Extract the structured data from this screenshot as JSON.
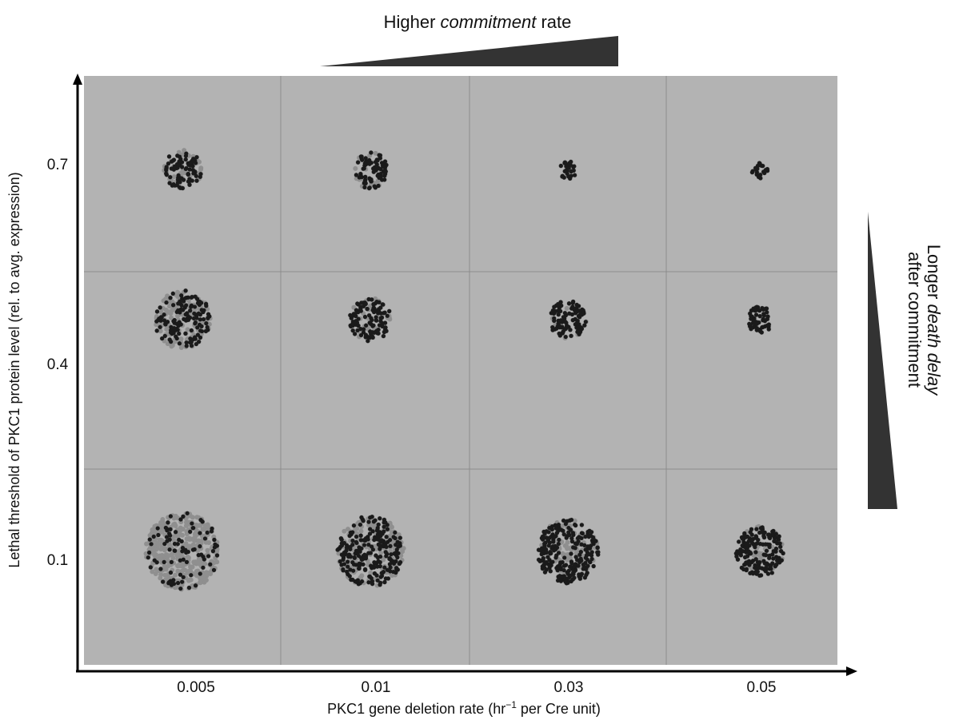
{
  "header": {
    "top_label": {
      "before": "Higher ",
      "emphasis": "commitment",
      "after": " rate"
    },
    "right_label": {
      "line1_before": "Longer ",
      "line1_emphasis": "death delay",
      "line2": "after commitment"
    }
  },
  "axes": {
    "y_label": "Lethal threshold of PKC1 protein level (rel. to avg. expression)",
    "y_ticks": [
      "0.7",
      "0.4",
      "0.1"
    ],
    "x_label": {
      "before": "PKC1 gene deletion rate (hr",
      "superscript": "−1",
      "after": " per Cre unit)"
    },
    "x_ticks": [
      "0.005",
      "0.01",
      "0.03",
      "0.05"
    ]
  }
}
